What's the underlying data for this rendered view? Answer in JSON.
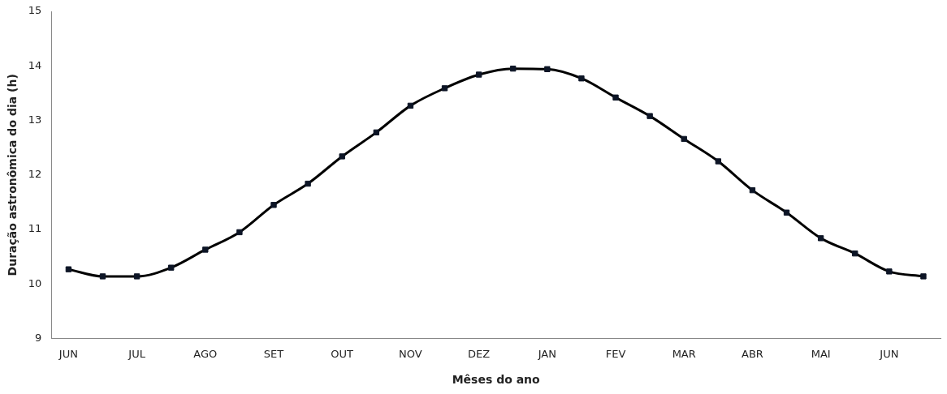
{
  "chart_data": {
    "type": "line",
    "xlabel": "Mêses do ano",
    "ylabel": "Duração astronômica do dia (h)",
    "categories": [
      "JUN",
      null,
      "JUL",
      null,
      "AGO",
      null,
      "SET",
      null,
      "OUT",
      null,
      "NOV",
      null,
      "DEZ",
      null,
      "JAN",
      null,
      "FEV",
      null,
      "MAR",
      null,
      "ABR",
      null,
      "MAI",
      null,
      "JUN",
      null
    ],
    "series": [
      {
        "color": "#0d1526",
        "values": [
          10.27,
          10.14,
          10.14,
          10.3,
          10.63,
          10.95,
          11.45,
          11.84,
          12.34,
          12.78,
          13.27,
          13.59,
          13.84,
          13.95,
          13.94,
          13.77,
          13.42,
          13.08,
          12.66,
          12.25,
          11.72,
          11.31,
          10.84,
          10.56,
          10.23,
          10.14
        ]
      }
    ],
    "ylim": [
      9,
      15
    ],
    "yticks": [
      9,
      10,
      11,
      12,
      13,
      14,
      15
    ],
    "grid": false,
    "legend": false,
    "marker": "square",
    "line_style": "solid"
  }
}
